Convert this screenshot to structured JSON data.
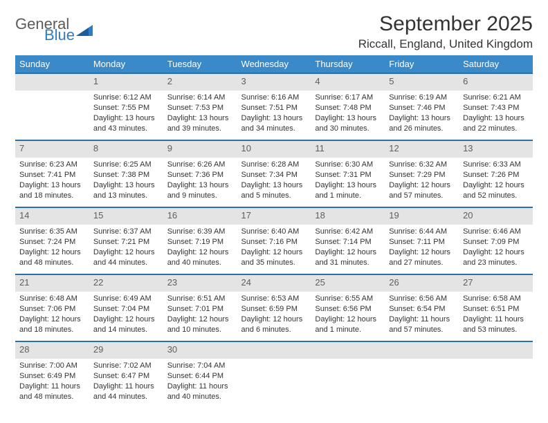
{
  "logo": {
    "general": "General",
    "blue": "Blue"
  },
  "title": "September 2025",
  "location": "Riccall, England, United Kingdom",
  "columns": [
    "Sunday",
    "Monday",
    "Tuesday",
    "Wednesday",
    "Thursday",
    "Friday",
    "Saturday"
  ],
  "header_bg": "#3a89c9",
  "daynum_bg": "#e4e4e4",
  "border_color": "#2f6f9f",
  "weeks": [
    {
      "nums": [
        "",
        "1",
        "2",
        "3",
        "4",
        "5",
        "6"
      ],
      "cells": [
        {
          "sunrise": "",
          "sunset": "",
          "daylight": ""
        },
        {
          "sunrise": "Sunrise: 6:12 AM",
          "sunset": "Sunset: 7:55 PM",
          "daylight": "Daylight: 13 hours and 43 minutes."
        },
        {
          "sunrise": "Sunrise: 6:14 AM",
          "sunset": "Sunset: 7:53 PM",
          "daylight": "Daylight: 13 hours and 39 minutes."
        },
        {
          "sunrise": "Sunrise: 6:16 AM",
          "sunset": "Sunset: 7:51 PM",
          "daylight": "Daylight: 13 hours and 34 minutes."
        },
        {
          "sunrise": "Sunrise: 6:17 AM",
          "sunset": "Sunset: 7:48 PM",
          "daylight": "Daylight: 13 hours and 30 minutes."
        },
        {
          "sunrise": "Sunrise: 6:19 AM",
          "sunset": "Sunset: 7:46 PM",
          "daylight": "Daylight: 13 hours and 26 minutes."
        },
        {
          "sunrise": "Sunrise: 6:21 AM",
          "sunset": "Sunset: 7:43 PM",
          "daylight": "Daylight: 13 hours and 22 minutes."
        }
      ]
    },
    {
      "nums": [
        "7",
        "8",
        "9",
        "10",
        "11",
        "12",
        "13"
      ],
      "cells": [
        {
          "sunrise": "Sunrise: 6:23 AM",
          "sunset": "Sunset: 7:41 PM",
          "daylight": "Daylight: 13 hours and 18 minutes."
        },
        {
          "sunrise": "Sunrise: 6:25 AM",
          "sunset": "Sunset: 7:38 PM",
          "daylight": "Daylight: 13 hours and 13 minutes."
        },
        {
          "sunrise": "Sunrise: 6:26 AM",
          "sunset": "Sunset: 7:36 PM",
          "daylight": "Daylight: 13 hours and 9 minutes."
        },
        {
          "sunrise": "Sunrise: 6:28 AM",
          "sunset": "Sunset: 7:34 PM",
          "daylight": "Daylight: 13 hours and 5 minutes."
        },
        {
          "sunrise": "Sunrise: 6:30 AM",
          "sunset": "Sunset: 7:31 PM",
          "daylight": "Daylight: 13 hours and 1 minute."
        },
        {
          "sunrise": "Sunrise: 6:32 AM",
          "sunset": "Sunset: 7:29 PM",
          "daylight": "Daylight: 12 hours and 57 minutes."
        },
        {
          "sunrise": "Sunrise: 6:33 AM",
          "sunset": "Sunset: 7:26 PM",
          "daylight": "Daylight: 12 hours and 52 minutes."
        }
      ]
    },
    {
      "nums": [
        "14",
        "15",
        "16",
        "17",
        "18",
        "19",
        "20"
      ],
      "cells": [
        {
          "sunrise": "Sunrise: 6:35 AM",
          "sunset": "Sunset: 7:24 PM",
          "daylight": "Daylight: 12 hours and 48 minutes."
        },
        {
          "sunrise": "Sunrise: 6:37 AM",
          "sunset": "Sunset: 7:21 PM",
          "daylight": "Daylight: 12 hours and 44 minutes."
        },
        {
          "sunrise": "Sunrise: 6:39 AM",
          "sunset": "Sunset: 7:19 PM",
          "daylight": "Daylight: 12 hours and 40 minutes."
        },
        {
          "sunrise": "Sunrise: 6:40 AM",
          "sunset": "Sunset: 7:16 PM",
          "daylight": "Daylight: 12 hours and 35 minutes."
        },
        {
          "sunrise": "Sunrise: 6:42 AM",
          "sunset": "Sunset: 7:14 PM",
          "daylight": "Daylight: 12 hours and 31 minutes."
        },
        {
          "sunrise": "Sunrise: 6:44 AM",
          "sunset": "Sunset: 7:11 PM",
          "daylight": "Daylight: 12 hours and 27 minutes."
        },
        {
          "sunrise": "Sunrise: 6:46 AM",
          "sunset": "Sunset: 7:09 PM",
          "daylight": "Daylight: 12 hours and 23 minutes."
        }
      ]
    },
    {
      "nums": [
        "21",
        "22",
        "23",
        "24",
        "25",
        "26",
        "27"
      ],
      "cells": [
        {
          "sunrise": "Sunrise: 6:48 AM",
          "sunset": "Sunset: 7:06 PM",
          "daylight": "Daylight: 12 hours and 18 minutes."
        },
        {
          "sunrise": "Sunrise: 6:49 AM",
          "sunset": "Sunset: 7:04 PM",
          "daylight": "Daylight: 12 hours and 14 minutes."
        },
        {
          "sunrise": "Sunrise: 6:51 AM",
          "sunset": "Sunset: 7:01 PM",
          "daylight": "Daylight: 12 hours and 10 minutes."
        },
        {
          "sunrise": "Sunrise: 6:53 AM",
          "sunset": "Sunset: 6:59 PM",
          "daylight": "Daylight: 12 hours and 6 minutes."
        },
        {
          "sunrise": "Sunrise: 6:55 AM",
          "sunset": "Sunset: 6:56 PM",
          "daylight": "Daylight: 12 hours and 1 minute."
        },
        {
          "sunrise": "Sunrise: 6:56 AM",
          "sunset": "Sunset: 6:54 PM",
          "daylight": "Daylight: 11 hours and 57 minutes."
        },
        {
          "sunrise": "Sunrise: 6:58 AM",
          "sunset": "Sunset: 6:51 PM",
          "daylight": "Daylight: 11 hours and 53 minutes."
        }
      ]
    },
    {
      "nums": [
        "28",
        "29",
        "30",
        "",
        "",
        "",
        ""
      ],
      "cells": [
        {
          "sunrise": "Sunrise: 7:00 AM",
          "sunset": "Sunset: 6:49 PM",
          "daylight": "Daylight: 11 hours and 48 minutes."
        },
        {
          "sunrise": "Sunrise: 7:02 AM",
          "sunset": "Sunset: 6:47 PM",
          "daylight": "Daylight: 11 hours and 44 minutes."
        },
        {
          "sunrise": "Sunrise: 7:04 AM",
          "sunset": "Sunset: 6:44 PM",
          "daylight": "Daylight: 11 hours and 40 minutes."
        },
        {
          "sunrise": "",
          "sunset": "",
          "daylight": ""
        },
        {
          "sunrise": "",
          "sunset": "",
          "daylight": ""
        },
        {
          "sunrise": "",
          "sunset": "",
          "daylight": ""
        },
        {
          "sunrise": "",
          "sunset": "",
          "daylight": ""
        }
      ]
    }
  ]
}
